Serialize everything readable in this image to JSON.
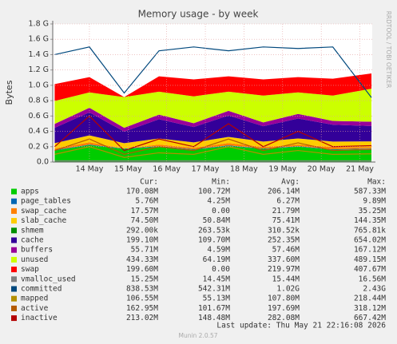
{
  "chart_data": {
    "type": "munin-area",
    "title": "Memory usage - by week",
    "y_label": "Bytes",
    "side_text": "RRDTOOL / TOBI OETIKER",
    "x": [
      13.6,
      14.5,
      15.4,
      16.3,
      17.2,
      18.1,
      19.0,
      19.9,
      20.8,
      21.8
    ],
    "xlim": [
      13.55,
      21.82
    ],
    "xticks": [
      {
        "value": 14.5,
        "label": "14 May"
      },
      {
        "value": 15.5,
        "label": "15 May"
      },
      {
        "value": 16.5,
        "label": "16 May"
      },
      {
        "value": 17.5,
        "label": "17 May"
      },
      {
        "value": 18.5,
        "label": "18 May"
      },
      {
        "value": 19.5,
        "label": "19 May"
      },
      {
        "value": 20.5,
        "label": "20 May"
      },
      {
        "value": 21.5,
        "label": "21 May"
      }
    ],
    "ylim": [
      0,
      1.8
    ],
    "yticks": [
      {
        "value": 0,
        "label": "0.0"
      },
      {
        "value": 0.2,
        "label": "0.2 G"
      },
      {
        "value": 0.4,
        "label": "0.4 G"
      },
      {
        "value": 0.6,
        "label": "0.6 G"
      },
      {
        "value": 0.8,
        "label": "0.8 G"
      },
      {
        "value": 1.0,
        "label": "1.0 G"
      },
      {
        "value": 1.2,
        "label": "1.2 G"
      },
      {
        "value": 1.4,
        "label": "1.4 G"
      },
      {
        "value": 1.6,
        "label": "1.6 G"
      },
      {
        "value": 1.8,
        "label": "1.8 G"
      }
    ],
    "grid": true,
    "stat_headers": [
      "Cur:",
      "Min:",
      "Avg:",
      "Max:"
    ],
    "series": [
      {
        "name": "apps",
        "color": "#00cc00",
        "style": "area",
        "stats": [
          "170.08M",
          "100.72M",
          "206.14M",
          "587.33M"
        ],
        "values": [
          0.15,
          0.22,
          0.17,
          0.2,
          0.16,
          0.21,
          0.17,
          0.2,
          0.16,
          0.17
        ]
      },
      {
        "name": "page_tables",
        "color": "#0066b3",
        "style": "area",
        "stats": [
          "5.76M",
          "4.25M",
          "6.27M",
          "9.89M"
        ],
        "values": [
          0.006,
          0.007,
          0.006,
          0.007,
          0.006,
          0.007,
          0.006,
          0.007,
          0.006,
          0.006
        ]
      },
      {
        "name": "swap_cache",
        "color": "#ff8000",
        "style": "area",
        "stats": [
          "17.57M",
          "0.00",
          "21.79M",
          "35.25M"
        ],
        "values": [
          0.02,
          0.03,
          0.0,
          0.02,
          0.02,
          0.03,
          0.02,
          0.02,
          0.03,
          0.018
        ]
      },
      {
        "name": "slab_cache",
        "color": "#ffcc00",
        "style": "area",
        "stats": [
          "74.50M",
          "50.84M",
          "75.41M",
          "144.35M"
        ],
        "values": [
          0.07,
          0.09,
          0.07,
          0.08,
          0.07,
          0.08,
          0.07,
          0.08,
          0.07,
          0.075
        ]
      },
      {
        "name": "shmem",
        "color": "#008f00",
        "style": "area",
        "stats": [
          "292.00k",
          "263.53k",
          "310.52k",
          "765.81k"
        ],
        "values": [
          0.0003,
          0.0003,
          0.0003,
          0.0003,
          0.0003,
          0.0003,
          0.0003,
          0.0003,
          0.0003,
          0.0003
        ]
      },
      {
        "name": "cache",
        "color": "#330099",
        "style": "area",
        "stats": [
          "199.10M",
          "109.70M",
          "252.35M",
          "654.02M"
        ],
        "values": [
          0.2,
          0.3,
          0.15,
          0.25,
          0.2,
          0.28,
          0.2,
          0.26,
          0.22,
          0.2
        ]
      },
      {
        "name": "buffers",
        "color": "#990099",
        "style": "area",
        "stats": [
          "55.71M",
          "4.59M",
          "57.46M",
          "167.12M"
        ],
        "values": [
          0.05,
          0.06,
          0.05,
          0.06,
          0.05,
          0.06,
          0.05,
          0.06,
          0.05,
          0.056
        ]
      },
      {
        "name": "unused",
        "color": "#ccff00",
        "style": "area",
        "stats": [
          "434.33M",
          "64.19M",
          "337.60M",
          "489.15M"
        ],
        "values": [
          0.3,
          0.2,
          0.4,
          0.3,
          0.35,
          0.25,
          0.35,
          0.28,
          0.33,
          0.43
        ]
      },
      {
        "name": "swap",
        "color": "#ff0000",
        "style": "area",
        "stats": [
          "199.60M",
          "0.00",
          "219.97M",
          "407.67M"
        ],
        "values": [
          0.22,
          0.2,
          0.0,
          0.2,
          0.22,
          0.2,
          0.21,
          0.2,
          0.22,
          0.2
        ]
      },
      {
        "name": "vmalloc_used",
        "color": "#808080",
        "style": "line",
        "stats": [
          "15.25M",
          "14.45M",
          "15.44M",
          "16.56M"
        ],
        "values": [
          0.015,
          0.015,
          0.015,
          0.015,
          0.015,
          0.015,
          0.015,
          0.015,
          0.015,
          0.015
        ]
      },
      {
        "name": "committed",
        "color": "#00487d",
        "style": "line",
        "stats": [
          "838.53M",
          "542.31M",
          "1.02G",
          "2.43G"
        ],
        "values": [
          1.4,
          1.5,
          0.9,
          1.45,
          1.5,
          1.45,
          1.5,
          1.48,
          1.5,
          0.84
        ]
      },
      {
        "name": "mapped",
        "color": "#b38f00",
        "style": "line",
        "stats": [
          "106.55M",
          "55.13M",
          "107.80M",
          "218.44M"
        ],
        "values": [
          0.1,
          0.2,
          0.06,
          0.12,
          0.1,
          0.2,
          0.1,
          0.15,
          0.1,
          0.107
        ]
      },
      {
        "name": "active",
        "color": "#b35a00",
        "style": "line",
        "stats": [
          "162.95M",
          "101.67M",
          "197.69M",
          "318.12M"
        ],
        "values": [
          0.15,
          0.3,
          0.1,
          0.2,
          0.15,
          0.3,
          0.15,
          0.25,
          0.15,
          0.163
        ]
      },
      {
        "name": "inactive",
        "color": "#b30000",
        "style": "line",
        "stats": [
          "213.02M",
          "148.48M",
          "282.08M",
          "667.42M"
        ],
        "values": [
          0.2,
          0.6,
          0.15,
          0.3,
          0.2,
          0.5,
          0.2,
          0.4,
          0.2,
          0.213
        ]
      }
    ],
    "last_update": "Last update: Thu May 21 22:16:08 2026",
    "footer": "Munin 2.0.57"
  }
}
